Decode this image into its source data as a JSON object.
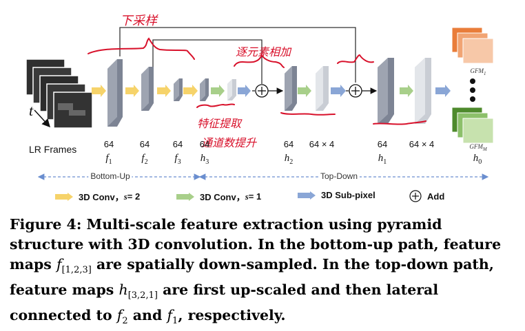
{
  "diagram": {
    "lr_frames_label": "LR Frames",
    "time_symbol": "t",
    "stages": [
      {
        "channels": "64",
        "var": "f",
        "sub": "1"
      },
      {
        "channels": "64",
        "var": "f",
        "sub": "2"
      },
      {
        "channels": "64",
        "var": "f",
        "sub": "3"
      },
      {
        "channels": "64",
        "var": "h",
        "sub": "3"
      },
      {
        "channels": "64",
        "var": "h",
        "sub": "2"
      },
      {
        "channels": "64 × 4",
        "var": "",
        "sub": ""
      },
      {
        "channels": "64",
        "var": "h",
        "sub": "1"
      },
      {
        "channels": "64 × 4",
        "var": "",
        "sub": ""
      },
      {
        "channels": "",
        "var": "h",
        "sub": "0"
      }
    ],
    "gfm_top": {
      "base": "GFM",
      "sub": "1"
    },
    "gfm_bottom": {
      "base": "GFM",
      "sub": "M"
    },
    "bottom_up_label": "Bottom-Up",
    "top_down_label": "Top-Down",
    "colors": {
      "conv_s2": "#f6d36a",
      "conv_s1": "#a8cf8a",
      "subpixel": "#8aa6d6",
      "feature_block": "#9aa0ad",
      "gfm_orange": "#f4b183",
      "gfm_green": "#70ad47",
      "handwriting": "#d8102a"
    }
  },
  "legend": {
    "conv_s2": {
      "label": "3D Conv，",
      "s_label": "s",
      "s_value": " = 2"
    },
    "conv_s1": {
      "label": "3D Conv，",
      "s_label": "s",
      "s_value": " = 1"
    },
    "subpixel": {
      "label": "3D Sub-pixel"
    },
    "add": {
      "label": "Add"
    }
  },
  "annotations": {
    "downsample": "下采样",
    "element_add": "逐元素相加",
    "feature_extract": "特征提取",
    "channel_up": "通道数提升"
  },
  "caption": {
    "fig_label": "Figure 4:",
    "part1": " Multi-scale feature extraction using pyramid structure with 3D convolution. In the bottom-up path, feature maps ",
    "f_var": "f",
    "f_sub": "[1,2,3]",
    "part2": " are spatially down-sampled. In the top-down path, feature maps ",
    "h_var": "h",
    "h_sub": "[3,2,1]",
    "part3": " are first up-scaled and then lateral connected to ",
    "f2_var": "f",
    "f2_sub": "2",
    "part4": " and ",
    "f1_var": "f",
    "f1_sub": "1",
    "part5": ", respectively."
  }
}
